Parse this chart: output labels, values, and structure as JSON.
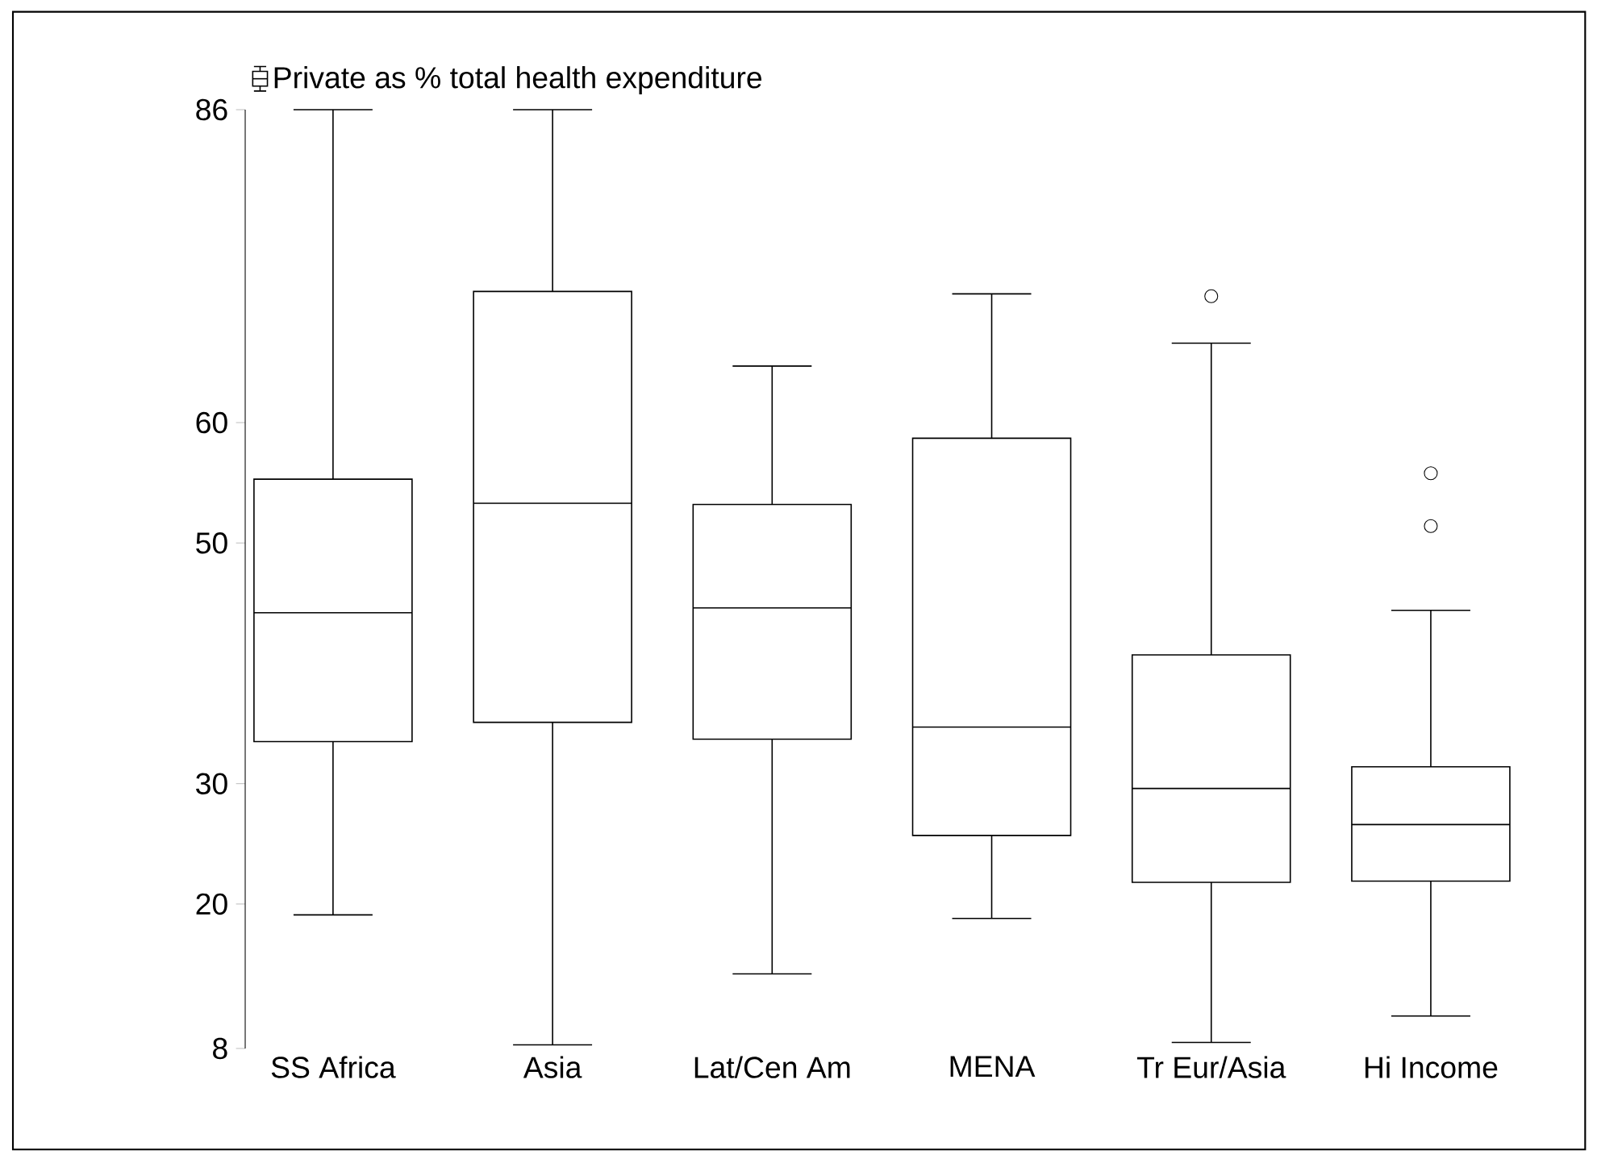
{
  "chart_data": {
    "type": "box",
    "categories": [
      "SS Africa",
      "Asia",
      "Lat/Cen Am",
      "MENA",
      "Tr Eur/Asia",
      "Hi Income"
    ],
    "series": [
      {
        "name": "Private as % total health expenditure",
        "color": "#000000",
        "boxes": [
          {
            "low": 19.1,
            "q1": 33.5,
            "median": 44.2,
            "q3": 55.3,
            "high": 86
          },
          {
            "low": 8.3,
            "q1": 35.1,
            "median": 53.3,
            "q3": 70.9,
            "high": 86
          },
          {
            "low": 14.2,
            "q1": 33.7,
            "median": 44.6,
            "q3": 53.2,
            "high": 64.7
          },
          {
            "low": 18.8,
            "q1": 25.7,
            "median": 34.7,
            "q3": 58.7,
            "high": 70.7
          },
          {
            "low": 8.5,
            "q1": 21.8,
            "median": 29.6,
            "q3": 40.7,
            "high": 66.6,
            "outliers": [
              70.5
            ]
          },
          {
            "low": 10.7,
            "q1": 21.9,
            "median": 26.6,
            "q3": 31.4,
            "high": 44.4,
            "outliers": [
              55.8,
              51.4
            ]
          }
        ]
      }
    ],
    "ylim": [
      8,
      86
    ],
    "yticks": [
      8,
      20,
      30,
      50,
      60,
      86
    ],
    "legend": "top left",
    "marker": "circle"
  }
}
